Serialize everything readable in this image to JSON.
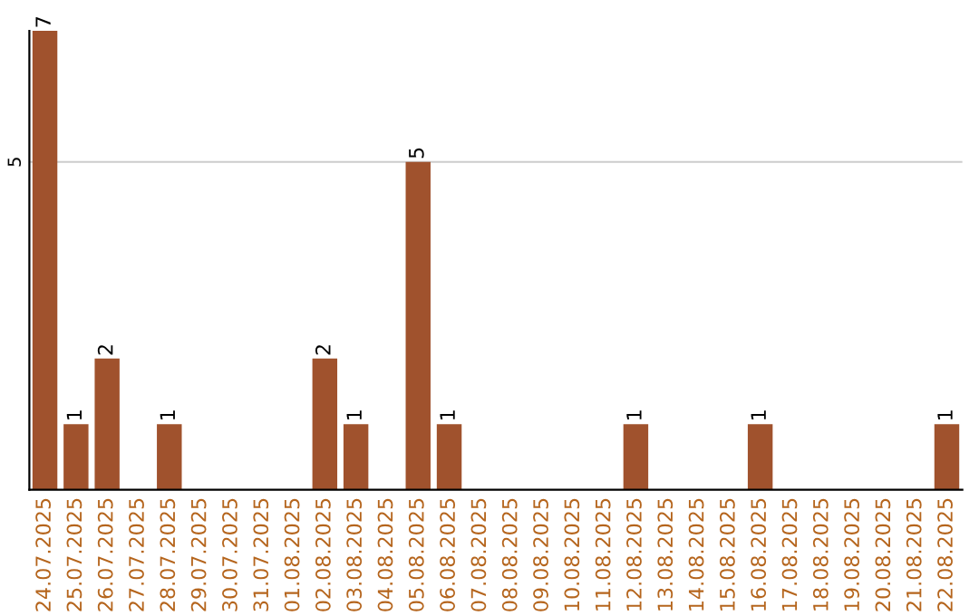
{
  "chart_data": {
    "type": "bar",
    "categories": [
      "24.07.2025",
      "25.07.2025",
      "26.07.2025",
      "27.07.2025",
      "28.07.2025",
      "29.07.2025",
      "30.07.2025",
      "31.07.2025",
      "01.08.2025",
      "02.08.2025",
      "03.08.2025",
      "04.08.2025",
      "05.08.2025",
      "06.08.2025",
      "07.08.2025",
      "08.08.2025",
      "09.08.2025",
      "10.08.2025",
      "11.08.2025",
      "12.08.2025",
      "13.08.2025",
      "14.08.2025",
      "15.08.2025",
      "16.08.2025",
      "17.08.2025",
      "18.08.2025",
      "19.08.2025",
      "20.08.2025",
      "21.08.2025",
      "22.08.2025"
    ],
    "values": [
      7,
      1,
      2,
      0,
      1,
      0,
      0,
      0,
      0,
      2,
      1,
      0,
      5,
      1,
      0,
      0,
      0,
      0,
      0,
      1,
      0,
      0,
      0,
      1,
      0,
      0,
      0,
      0,
      0,
      1
    ],
    "value_labels": [
      "7",
      "1",
      "2",
      null,
      "1",
      null,
      null,
      null,
      null,
      "2",
      "1",
      null,
      "5",
      "1",
      null,
      null,
      null,
      null,
      null,
      "1",
      null,
      null,
      null,
      "1",
      null,
      null,
      null,
      null,
      null,
      "1"
    ],
    "color": "#a0522d",
    "ylim": [
      0,
      7
    ],
    "yticks": [
      5
    ],
    "grid": "y",
    "legend": false
  }
}
